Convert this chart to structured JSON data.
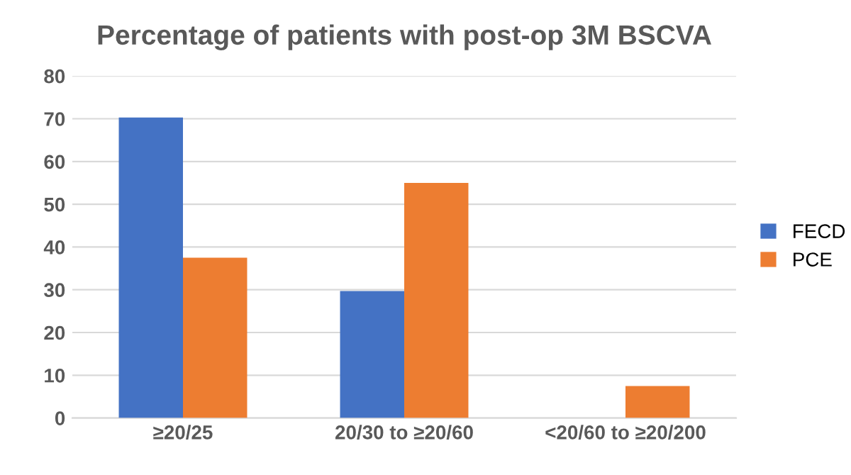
{
  "chart_data": {
    "type": "bar",
    "title": "Percentage of patients with post-op 3M BSCVA",
    "categories": [
      "≥20/25",
      "20/30 to ≥20/60",
      "<20/60 to ≥20/200"
    ],
    "series": [
      {
        "name": "FECD",
        "color": "#4472c4",
        "values": [
          70.3,
          29.7,
          0
        ]
      },
      {
        "name": "PCE",
        "color": "#ed7d31",
        "values": [
          37.5,
          55,
          7.5
        ]
      }
    ],
    "ylim": [
      0,
      80
    ],
    "yticks": [
      0,
      10,
      20,
      30,
      40,
      50,
      60,
      70,
      80
    ],
    "grid": "y",
    "legend": "right"
  }
}
